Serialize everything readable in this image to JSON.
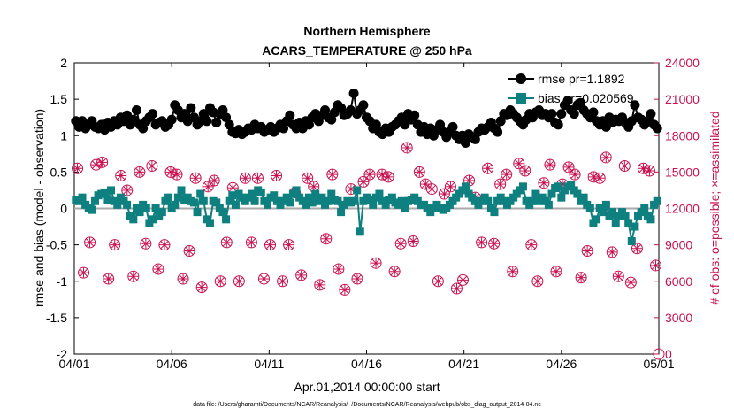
{
  "chart_data": {
    "type": "line",
    "title": "Northern Hemisphere",
    "subtitle": "ACARS_TEMPERATURE @ 250 hPa",
    "xlabel": "Apr.01,2014 00:00:00 start",
    "ylabel": "rmse and bias (model - observation)",
    "ylabel_right": "# of obs: o=possible; ×=assimilated",
    "footnote": "data file: /Users/gharamti/Documents/NCAR/Reanalysis/~/Documents/NCAR/Reanalysis/webpub/obs_diag_output_2014-04.nc",
    "xlim": [
      0,
      30
    ],
    "ylim": [
      -2,
      2
    ],
    "ylim_right": [
      0,
      24000
    ],
    "x_ticks": [
      0,
      5,
      10,
      15,
      20,
      25,
      30
    ],
    "x_tick_labels": [
      "04/01",
      "04/06",
      "04/11",
      "04/16",
      "04/21",
      "04/26",
      "05/01"
    ],
    "y_ticks": [
      -2,
      -1.5,
      -1,
      -0.5,
      0,
      0.5,
      1,
      1.5,
      2
    ],
    "y_tick_labels": [
      "-2",
      "-1.5",
      "-1",
      "-0.5",
      "0",
      "0.5",
      "1",
      "1.5",
      "2"
    ],
    "y_ticks_right": [
      0,
      3000,
      6000,
      9000,
      12000,
      15000,
      18000,
      21000,
      24000
    ],
    "y_tick_labels_right": [
      "0",
      "3000",
      "6000",
      "9000",
      "12000",
      "15000",
      "18000",
      "21000",
      "24000"
    ],
    "colors": {
      "rmse": "#000000",
      "bias": "#0f8080",
      "obs": "#c8104e",
      "zero_line": "#aaaaaa"
    },
    "series": [
      {
        "name": "rmse",
        "legend": "rmse pr=1.1892",
        "values": [
          1.2,
          1.12,
          1.2,
          1.1,
          1.15,
          1.2,
          1.12,
          1.1,
          1.15,
          1.08,
          1.18,
          1.12,
          1.2,
          1.15,
          1.25,
          1.2,
          1.28,
          1.15,
          1.22,
          1.35,
          1.15,
          1.1,
          1.2,
          1.25,
          1.3,
          1.15,
          1.18,
          1.2,
          1.12,
          1.15,
          1.22,
          1.42,
          1.35,
          1.25,
          1.3,
          1.2,
          1.38,
          1.25,
          1.15,
          1.2,
          1.3,
          1.2,
          1.38,
          1.32,
          1.18,
          1.3,
          1.35,
          1.25,
          1.15,
          1.05,
          1.03,
          1.08,
          1.02,
          1.05,
          1.1,
          1.08,
          1.15,
          1.1,
          1.12,
          1.05,
          1.08,
          1.12,
          1.05,
          1.1,
          1.15,
          1.1,
          1.2,
          1.28,
          1.15,
          1.1,
          1.18,
          1.1,
          1.2,
          1.15,
          1.25,
          1.3,
          1.2,
          1.28,
          1.35,
          1.25,
          1.22,
          1.32,
          1.42,
          1.38,
          1.28,
          1.3,
          1.35,
          1.58,
          1.3,
          1.35,
          1.42,
          1.25,
          1.2,
          1.1,
          1.15,
          1.05,
          1.02,
          1.1,
          1.05,
          1.12,
          1.15,
          1.2,
          1.25,
          1.15,
          1.3,
          1.22,
          1.28,
          1.15,
          1.05,
          1.12,
          1.02,
          1.1,
          1.0,
          1.08,
          1.15,
          1.05,
          0.98,
          1.05,
          1.12,
          1.0,
          0.95,
          1.0,
          0.9,
          1.02,
          0.98,
          0.95,
          1.05,
          1.1,
          1.08,
          1.12,
          1.18,
          1.1,
          1.05,
          1.2,
          1.3,
          1.28,
          1.35,
          1.3,
          1.25,
          1.2,
          1.15,
          1.22,
          1.3,
          1.25,
          1.32,
          1.35,
          1.28,
          1.3,
          1.25,
          1.3,
          1.18,
          1.15,
          1.3,
          1.42,
          1.48,
          1.35,
          1.3,
          1.42,
          1.45,
          1.35,
          1.3,
          1.25,
          1.32,
          1.2,
          1.15,
          1.2,
          1.12,
          1.25,
          1.18,
          1.22,
          1.2,
          1.25,
          1.18,
          1.12,
          1.2,
          1.42,
          1.25,
          1.22,
          1.15,
          1.2,
          1.3,
          1.15,
          1.1
        ]
      },
      {
        "name": "bias",
        "legend": "bias pr=0.020569",
        "values": [
          0.12,
          0.1,
          0.15,
          0.05,
          0.0,
          -0.02,
          0.1,
          0.18,
          0.2,
          0.22,
          0.12,
          0.25,
          0.1,
          0.05,
          0.15,
          0.1,
          0.05,
          -0.1,
          -0.15,
          0.0,
          -0.05,
          0.05,
          0.0,
          -0.2,
          -0.15,
          0.0,
          -0.1,
          -0.05,
          0.1,
          0.15,
          0.0,
          0.05,
          0.15,
          0.25,
          0.12,
          0.15,
          0.1,
          0.08,
          -0.05,
          0.2,
          0.1,
          -0.15,
          -0.2,
          0.1,
          0.08,
          0.0,
          -0.05,
          -0.15,
          0.1,
          0.18,
          0.05,
          0.2,
          0.15,
          0.1,
          0.15,
          0.2,
          0.1,
          0.25,
          0.22,
          0.1,
          0.05,
          0.15,
          0.18,
          0.1,
          0.05,
          0.1,
          0.15,
          0.08,
          0.2,
          0.25,
          0.15,
          0.1,
          0.05,
          0.15,
          0.08,
          0.2,
          0.1,
          0.15,
          0.05,
          0.1,
          0.2,
          0.12,
          0.1,
          -0.05,
          0.05,
          0.1,
          0.08,
          0.1,
          0.25,
          -0.32,
          0.1,
          0.15,
          0.12,
          0.05,
          0.15,
          0.2,
          0.1,
          0.05,
          0.12,
          0.15,
          0.08,
          0.05,
          0.1,
          0.0,
          0.1,
          0.12,
          0.15,
          0.1,
          0.05,
          0.05,
          0.0,
          -0.05,
          0.0,
          0.05,
          0.0,
          -0.02,
          0.0,
          0.05,
          0.1,
          0.15,
          0.2,
          0.25,
          0.3,
          0.2,
          0.15,
          0.1,
          0.05,
          0.1,
          0.15,
          0.1,
          0.0,
          -0.05,
          0.1,
          0.15,
          0.1,
          0.05,
          0.1,
          0.15,
          0.2,
          0.25,
          0.3,
          0.1,
          0.05,
          0.1,
          0.2,
          0.1,
          0.15,
          0.1,
          0.05,
          0.2,
          0.28,
          0.3,
          0.15,
          0.25,
          0.3,
          0.32,
          0.25,
          0.2,
          0.1,
          0.15,
          0.05,
          0.0,
          -0.2,
          -0.15,
          0.0,
          -0.05,
          0.05,
          -0.1,
          -0.05,
          -0.2,
          -0.1,
          -0.05,
          -0.1,
          -0.2,
          -0.45,
          -0.25,
          -0.1,
          -0.05,
          0.0,
          -0.1,
          -0.15,
          0.05,
          0.1
        ]
      },
      {
        "name": "obs_possible",
        "legend": "",
        "values": [
          15300,
          6700,
          9200,
          15600,
          15800,
          6200,
          9000,
          14700,
          13500,
          6400,
          15000,
          9100,
          15500,
          7000,
          9000,
          15000,
          14800,
          6200,
          8500,
          14500,
          5500,
          13800,
          14300,
          6000,
          9200,
          13700,
          6000,
          14500,
          9200,
          14500,
          6200,
          9000,
          14700,
          6000,
          9000,
          13300,
          6500,
          14500,
          13800,
          5700,
          9500,
          14800,
          7000,
          5300,
          13600,
          6200,
          14200,
          14800,
          7500,
          14800,
          14600,
          6800,
          9100,
          17000,
          9300,
          15000,
          14000,
          13600,
          6000,
          13200,
          13800,
          5400,
          6100,
          14300,
          12900,
          9200,
          15300,
          9100,
          14000,
          14800,
          6800,
          15700,
          15100,
          9000,
          6000,
          14100,
          15600,
          6800,
          14000,
          15400,
          14800,
          6300,
          8500,
          14600,
          14500,
          16200,
          8400,
          6400,
          15500,
          5900,
          8700,
          15300,
          15100,
          7300
        ]
      },
      {
        "name": "obs_assimilated",
        "legend": "",
        "values": [
          15300,
          6700,
          9200,
          15600,
          15800,
          6200,
          9000,
          14700,
          13500,
          6400,
          15000,
          9100,
          15500,
          7000,
          9000,
          15000,
          14800,
          6200,
          8500,
          14500,
          5500,
          13800,
          14300,
          6000,
          9200,
          13700,
          6000,
          14500,
          9200,
          14500,
          6200,
          9000,
          14700,
          6000,
          9000,
          13300,
          6500,
          14500,
          13800,
          5700,
          9500,
          14800,
          7000,
          5300,
          13600,
          6200,
          14200,
          14800,
          7500,
          14800,
          14600,
          6800,
          9100,
          17000,
          9300,
          15000,
          14000,
          13600,
          6000,
          13200,
          13800,
          5400,
          6100,
          14300,
          12900,
          9200,
          15300,
          9100,
          14000,
          14800,
          6800,
          15700,
          15100,
          9000,
          6000,
          14100,
          15600,
          6800,
          14000,
          15400,
          14800,
          6300,
          8500,
          14600,
          14500,
          16200,
          8400,
          6400,
          15500,
          5900,
          8700,
          15300,
          15100,
          7300
        ]
      }
    ]
  }
}
